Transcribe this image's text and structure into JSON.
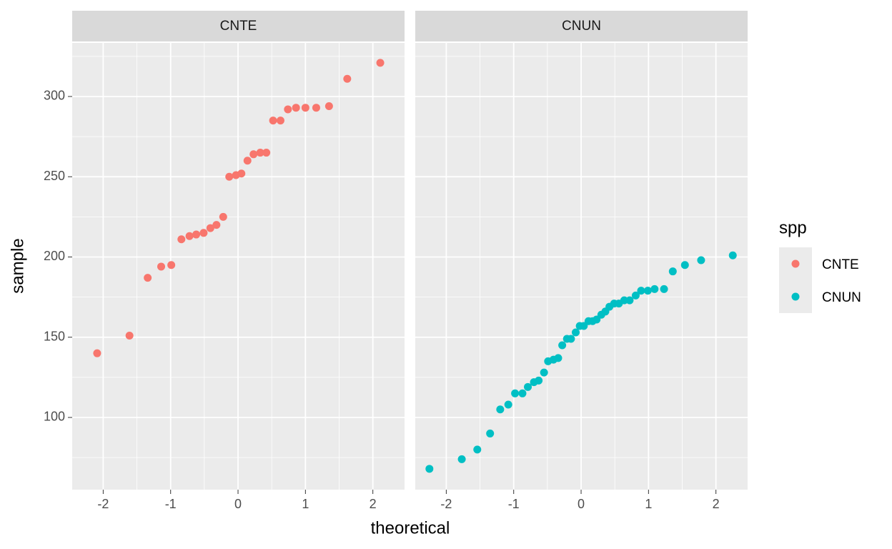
{
  "chart_data": {
    "type": "scatter",
    "xlabel": "theoretical",
    "ylabel": "sample",
    "legend_title": "spp",
    "xlim": [
      -2.46,
      2.47
    ],
    "ylim": [
      55,
      333.4
    ],
    "xticks": [
      -2,
      -1,
      0,
      1,
      2
    ],
    "yticks": [
      100,
      150,
      200,
      250,
      300
    ],
    "grid": true,
    "minor_grid": true,
    "legend": "right",
    "panels": [
      {
        "title": "CNTE",
        "series": [
          {
            "name": "CNTE",
            "color": "#F8766D",
            "x": [
              -2.09,
              -1.61,
              -1.34,
              -1.14,
              -0.99,
              -0.84,
              -0.72,
              -0.62,
              -0.51,
              -0.41,
              -0.32,
              -0.22,
              -0.13,
              -0.03,
              0.05,
              0.14,
              0.23,
              0.33,
              0.42,
              0.52,
              0.63,
              0.74,
              0.86,
              1.0,
              1.16,
              1.35,
              1.62,
              2.11
            ],
            "values": [
              140,
              151,
              187,
              194,
              195,
              211,
              213,
              214,
              215,
              218,
              220,
              225,
              250,
              251,
              252,
              260,
              264,
              265,
              265,
              285,
              285,
              292,
              293,
              293,
              293,
              294,
              311,
              321
            ]
          }
        ]
      },
      {
        "title": "CNUN",
        "series": [
          {
            "name": "CNUN",
            "color": "#00BFC4",
            "x": [
              -2.25,
              -1.77,
              -1.54,
              -1.35,
              -1.2,
              -1.08,
              -0.98,
              -0.87,
              -0.79,
              -0.7,
              -0.63,
              -0.55,
              -0.49,
              -0.41,
              -0.34,
              -0.28,
              -0.21,
              -0.15,
              -0.08,
              -0.02,
              0.04,
              0.11,
              0.17,
              0.23,
              0.3,
              0.36,
              0.42,
              0.49,
              0.56,
              0.64,
              0.72,
              0.81,
              0.89,
              0.99,
              1.09,
              1.23,
              1.36,
              1.54,
              1.78,
              2.25
            ],
            "values": [
              68,
              74,
              80,
              90,
              105,
              108,
              115,
              115,
              119,
              122,
              123,
              128,
              135,
              136,
              137,
              145,
              149,
              149,
              153,
              157,
              157,
              160,
              160,
              161,
              164,
              166,
              169,
              171,
              171,
              173,
              173,
              176,
              179,
              179,
              180,
              180,
              191,
              195,
              198,
              201
            ]
          }
        ]
      }
    ]
  }
}
